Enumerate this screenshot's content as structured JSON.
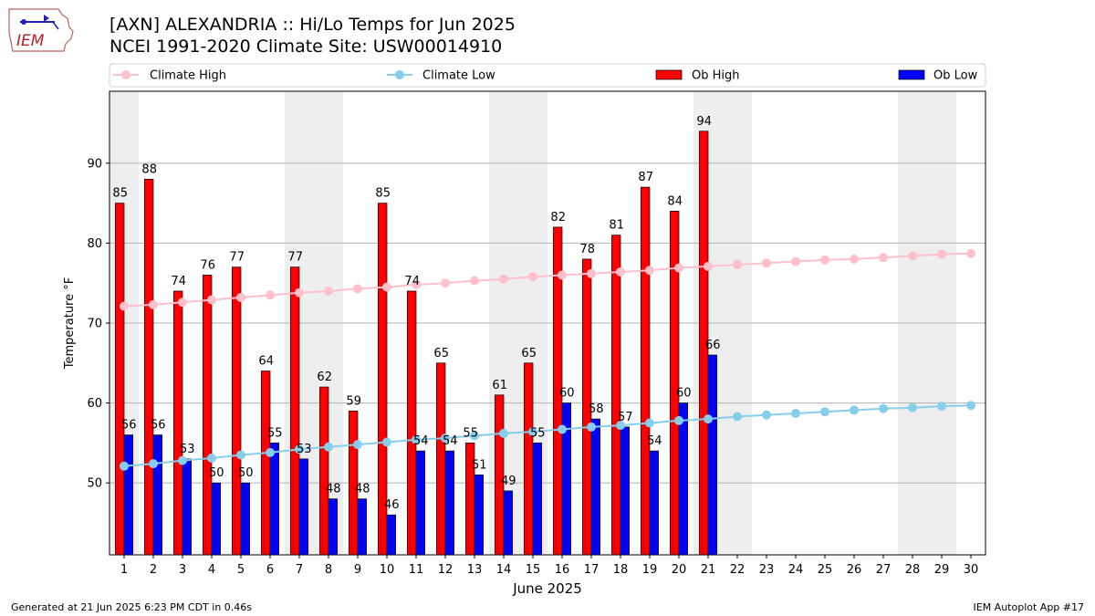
{
  "title_line1": "[AXN] ALEXANDRIA :: Hi/Lo Temps for Jun 2025",
  "title_line2": "NCEI 1991-2020 Climate Site: USW00014910",
  "logo_text": "IEM",
  "footer_left": "Generated at 21 Jun 2025 6:23 PM CDT in 0.46s",
  "footer_right": "IEM Autoplot App #17",
  "colors": {
    "ob_high": "#ff0000",
    "ob_low": "#0000ff",
    "climate_high": "#ffc0cb",
    "climate_low": "#87ceeb",
    "weekend_shade": "#eeeeee",
    "grid": "#b0b0b0"
  },
  "chart_data": {
    "type": "bar",
    "xlabel": "June 2025",
    "ylabel": "Temperature °F",
    "ylim": [
      41,
      99
    ],
    "yticks": [
      50,
      60,
      70,
      80,
      90
    ],
    "grid": "horizontal",
    "legend_position": "top",
    "categories": [
      1,
      2,
      3,
      4,
      5,
      6,
      7,
      8,
      9,
      10,
      11,
      12,
      13,
      14,
      15,
      16,
      17,
      18,
      19,
      20,
      21,
      22,
      23,
      24,
      25,
      26,
      27,
      28,
      29,
      30
    ],
    "shaded_days": [
      1,
      7,
      8,
      14,
      15,
      21,
      22,
      28,
      29
    ],
    "legend": [
      "Climate High",
      "Climate Low",
      "Ob High",
      "Ob Low"
    ],
    "series": [
      {
        "name": "Ob High",
        "kind": "bar",
        "values": [
          85,
          88,
          74,
          76,
          77,
          64,
          77,
          62,
          59,
          85,
          74,
          65,
          55,
          61,
          65,
          82,
          78,
          81,
          87,
          84,
          94,
          null,
          null,
          null,
          null,
          null,
          null,
          null,
          null,
          null
        ]
      },
      {
        "name": "Ob Low",
        "kind": "bar",
        "values": [
          56,
          56,
          53,
          50,
          50,
          55,
          53,
          48,
          48,
          46,
          54,
          54,
          51,
          49,
          55,
          60,
          58,
          57,
          54,
          60,
          66,
          null,
          null,
          null,
          null,
          null,
          null,
          null,
          null,
          null
        ]
      },
      {
        "name": "Climate High",
        "kind": "line",
        "values": [
          72.1,
          72.3,
          72.6,
          72.9,
          73.2,
          73.5,
          73.8,
          74.0,
          74.3,
          74.5,
          74.8,
          75.0,
          75.3,
          75.5,
          75.8,
          76.0,
          76.2,
          76.4,
          76.6,
          76.9,
          77.1,
          77.3,
          77.5,
          77.7,
          77.9,
          78.0,
          78.2,
          78.4,
          78.6,
          78.7
        ]
      },
      {
        "name": "Climate Low",
        "kind": "line",
        "values": [
          52.1,
          52.4,
          52.8,
          53.1,
          53.5,
          53.8,
          54.2,
          54.5,
          54.8,
          55.1,
          55.4,
          55.6,
          55.9,
          56.2,
          56.4,
          56.7,
          57.0,
          57.2,
          57.5,
          57.8,
          58.0,
          58.3,
          58.5,
          58.7,
          58.9,
          59.1,
          59.3,
          59.4,
          59.6,
          59.7
        ]
      }
    ]
  }
}
